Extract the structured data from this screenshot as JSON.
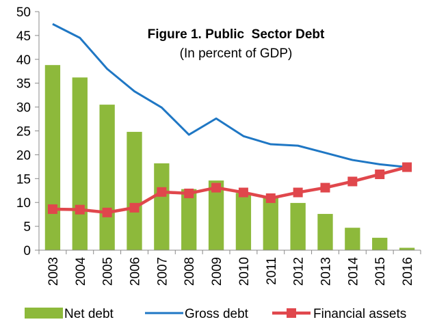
{
  "chart_data": {
    "type": "bar+line",
    "title": "Figure 1. Public  Sector Debt",
    "subtitle": "(In percent of GDP)",
    "categories": [
      "2003",
      "2004",
      "2005",
      "2006",
      "2007",
      "2008",
      "2009",
      "2010",
      "2011",
      "2012",
      "2013",
      "2014",
      "2015",
      "2016"
    ],
    "ylim": [
      0,
      50
    ],
    "yticks": [
      0,
      5,
      10,
      15,
      20,
      25,
      30,
      35,
      40,
      45,
      50
    ],
    "grid": false,
    "legend_position": "bottom",
    "series": [
      {
        "name": "Net debt",
        "kind": "bar",
        "color": "#8DB93B",
        "values": [
          38.8,
          36.2,
          30.5,
          24.8,
          18.2,
          12.8,
          14.6,
          12.0,
          11.2,
          9.9,
          7.6,
          4.7,
          2.6,
          0.5
        ]
      },
      {
        "name": "Gross debt",
        "kind": "line",
        "color": "#1F77C4",
        "values": [
          47.4,
          44.5,
          38.0,
          33.3,
          29.9,
          24.2,
          27.6,
          23.9,
          22.2,
          21.9,
          20.4,
          18.9,
          18.0,
          17.4
        ]
      },
      {
        "name": "Financial assets",
        "kind": "line-marker",
        "color": "#E0474C",
        "values": [
          8.6,
          8.5,
          7.9,
          8.9,
          12.2,
          11.9,
          13.1,
          12.1,
          10.9,
          12.1,
          13.1,
          14.4,
          15.9,
          17.4
        ]
      }
    ]
  }
}
